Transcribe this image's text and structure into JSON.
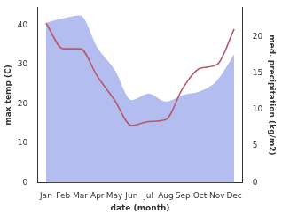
{
  "chart_data": {
    "type": "line",
    "x_label": "date (month)",
    "y_label": "max temp (C)",
    "y2_label": "med. precipitation (kg/m2)",
    "categories": [
      "Jan",
      "Feb",
      "Mar",
      "Apr",
      "May",
      "Jun",
      "Jul",
      "Aug",
      "Sep",
      "Oct",
      "Nov",
      "Dec"
    ],
    "series": [
      {
        "type": "area",
        "axis": "y2",
        "color": "#b3bdf0",
        "values": [
          21.9,
          22.5,
          22.9,
          18.5,
          15.5,
          11.3,
          12.2,
          11.1,
          12.0,
          12.5,
          14.0,
          17.6
        ]
      },
      {
        "type": "line",
        "axis": "y",
        "color": "#b85a6a",
        "values": [
          40.5,
          34.0,
          34.0,
          27.0,
          21.0,
          14.5,
          15.5,
          16.0,
          24.0,
          29.0,
          30.0,
          39.0
        ]
      }
    ],
    "ylim": [
      0,
      44.5
    ],
    "yticks": [
      0,
      10,
      20,
      30,
      40
    ],
    "y2lim": [
      0,
      24
    ],
    "y2ticks": [
      0,
      5,
      10,
      15,
      20
    ],
    "grid": false
  }
}
